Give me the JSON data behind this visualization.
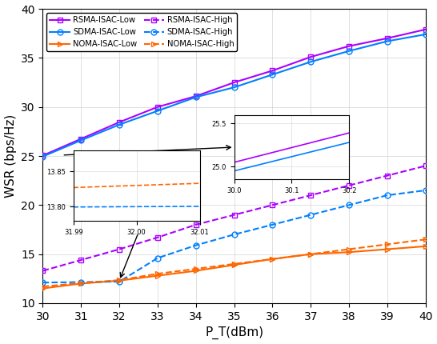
{
  "x": [
    30,
    31,
    32,
    33,
    34,
    35,
    36,
    37,
    38,
    39,
    40
  ],
  "rsma_low": [
    25.05,
    26.75,
    28.45,
    30.0,
    31.1,
    32.5,
    33.7,
    35.1,
    36.2,
    37.0,
    37.9
  ],
  "rsma_high": [
    13.3,
    14.4,
    15.5,
    16.7,
    18.0,
    19.0,
    20.0,
    21.0,
    22.0,
    23.0,
    24.0
  ],
  "sdma_low": [
    24.95,
    26.6,
    28.2,
    29.6,
    31.0,
    32.0,
    33.3,
    34.6,
    35.7,
    36.7,
    37.4
  ],
  "sdma_high": [
    12.1,
    12.15,
    12.2,
    14.6,
    15.9,
    17.0,
    18.0,
    19.0,
    20.0,
    21.0,
    21.5
  ],
  "noma_low": [
    11.5,
    12.0,
    12.3,
    12.8,
    13.3,
    13.9,
    14.5,
    15.0,
    15.2,
    15.5,
    15.8
  ],
  "noma_high": [
    11.7,
    12.05,
    12.35,
    13.0,
    13.5,
    14.0,
    14.5,
    15.0,
    15.5,
    16.0,
    16.5
  ],
  "colors": {
    "rsma": "#AA00FF",
    "sdma": "#0080FF",
    "noma": "#FF6600"
  },
  "ylim": [
    10,
    40
  ],
  "xlim": [
    30,
    40
  ],
  "ylabel": "WSR (bps/Hz)",
  "xlabel": "P_T(dBm)",
  "ins1_xlim": [
    30.0,
    30.2
  ],
  "ins1_ylim": [
    24.85,
    25.6
  ],
  "ins1_xticks": [
    30.0,
    30.1,
    30.2
  ],
  "ins1_yticks": [
    25.0,
    25.5
  ],
  "ins2_xlim": [
    31.99,
    32.01
  ],
  "ins2_ylim": [
    13.78,
    13.88
  ],
  "ins2_xticks": [
    31.99,
    32.0,
    32.01
  ],
  "ins2_yticks": [
    13.8,
    13.85
  ]
}
